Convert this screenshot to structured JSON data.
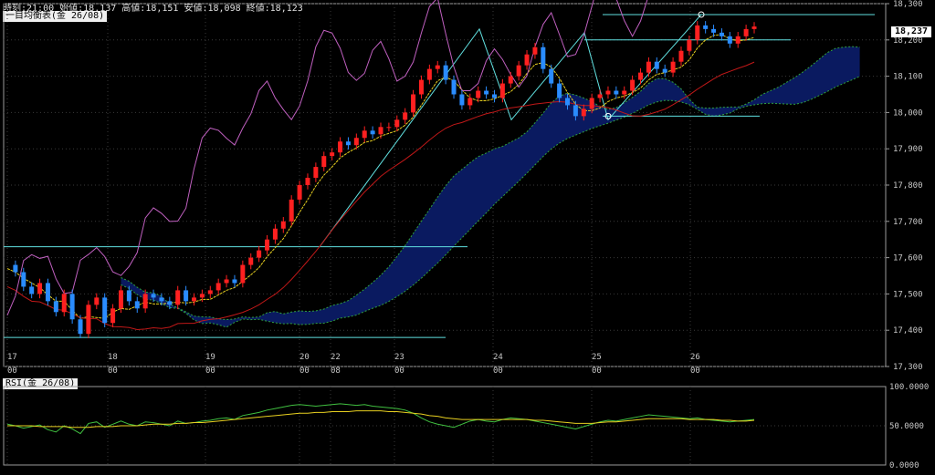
{
  "header": {
    "ohlc_text": "時刻:21:00 始値:18,137 高値:18,151 安値:18,098 終値:18,123",
    "main_label": "一目均衡表(金 26/08)",
    "rsi_label": "RSI(金 26/08)",
    "last_price": "18,237"
  },
  "colors": {
    "background": "#000000",
    "grid": "#3a3a3a",
    "up_candle": "#ff2020",
    "down_candle": "#2a8cff",
    "tenkan": "#e8d020",
    "kijun": "#c01818",
    "chikou": "#c060c0",
    "kumo_fill": "#0a1a60",
    "kumo_line": "#30a040",
    "trendline": "#60e0e0",
    "rsi_line": "#40c040",
    "rsi_signal": "#e8d020"
  },
  "chart_data": [
    {
      "type": "candlestick",
      "title": "一目均衡表(金 26/08)",
      "ylim": [
        17300,
        18300
      ],
      "y_ticks": [
        "18,300",
        "18,200",
        "18,100",
        "18,000",
        "17,900",
        "17,800",
        "17,700",
        "17,600",
        "17,500",
        "17,400",
        "17,300"
      ],
      "x_ticks": [
        {
          "day": "17",
          "time": "00"
        },
        {
          "day": "18",
          "time": "00"
        },
        {
          "day": "19",
          "time": "00"
        },
        {
          "day": "20",
          "time": "00"
        },
        {
          "day": "22",
          "time": "08"
        },
        {
          "day": "23",
          "time": "00"
        },
        {
          "day": "24",
          "time": "00"
        },
        {
          "day": "25",
          "time": "00"
        },
        {
          "day": "26",
          "time": "00"
        }
      ],
      "close_path": [
        17580,
        17560,
        17520,
        17500,
        17530,
        17480,
        17450,
        17500,
        17430,
        17390,
        17470,
        17490,
        17420,
        17460,
        17510,
        17480,
        17460,
        17500,
        17490,
        17480,
        17470,
        17510,
        17480,
        17490,
        17500,
        17510,
        17530,
        17540,
        17530,
        17580,
        17600,
        17620,
        17650,
        17680,
        17700,
        17760,
        17800,
        17820,
        17850,
        17880,
        17890,
        17920,
        17910,
        17930,
        17950,
        17940,
        17960,
        17960,
        17980,
        18000,
        18050,
        18090,
        18120,
        18130,
        18090,
        18050,
        18020,
        18040,
        18060,
        18050,
        18040,
        18080,
        18100,
        18130,
        18160,
        18180,
        18120,
        18080,
        18040,
        18020,
        17990,
        18010,
        18040,
        18050,
        18060,
        18050,
        18060,
        18090,
        18110,
        18140,
        18120,
        18110,
        18140,
        18170,
        18200,
        18240,
        18230,
        18220,
        18210,
        18190,
        18210,
        18230,
        18237
      ],
      "horizontal_levels": [
        18270,
        18200,
        17990,
        17630,
        17380
      ],
      "series": [
        {
          "name": "RSI",
          "panel": "rsi",
          "ylim": [
            0,
            100
          ],
          "y_ticks": [
            "100.0000",
            "50.0000",
            "0.0000"
          ],
          "values": [
            52,
            50,
            47,
            49,
            51,
            45,
            42,
            50,
            46,
            40,
            53,
            55,
            48,
            52,
            56,
            52,
            50,
            55,
            54,
            52,
            50,
            56,
            53,
            54,
            56,
            57,
            59,
            60,
            58,
            63,
            65,
            67,
            70,
            72,
            74,
            76,
            77,
            76,
            75,
            76,
            77,
            78,
            77,
            76,
            77,
            75,
            74,
            73,
            72,
            70,
            66,
            60,
            55,
            52,
            50,
            48,
            52,
            56,
            58,
            56,
            55,
            58,
            60,
            59,
            58,
            56,
            54,
            52,
            50,
            48,
            46,
            49,
            52,
            55,
            57,
            56,
            58,
            60,
            62,
            64,
            63,
            62,
            61,
            60,
            59,
            60,
            58,
            57,
            56,
            55,
            56,
            57,
            58
          ]
        },
        {
          "name": "RSI signal",
          "panel": "rsi",
          "values": [
            50,
            50,
            50,
            50,
            49,
            49,
            49,
            49,
            48,
            48,
            48,
            49,
            49,
            49,
            50,
            50,
            50,
            51,
            52,
            52,
            52,
            53,
            53,
            54,
            54,
            55,
            56,
            57,
            58,
            59,
            60,
            61,
            62,
            63,
            64,
            65,
            66,
            66,
            67,
            67,
            68,
            68,
            68,
            69,
            69,
            69,
            69,
            68,
            68,
            67,
            66,
            65,
            63,
            62,
            60,
            59,
            58,
            58,
            58,
            58,
            58,
            58,
            58,
            58,
            58,
            57,
            57,
            56,
            55,
            54,
            53,
            53,
            53,
            54,
            55,
            55,
            56,
            57,
            58,
            59,
            59,
            59,
            59,
            59,
            58,
            58,
            58,
            58,
            57,
            57,
            56,
            56,
            57
          ]
        }
      ]
    }
  ]
}
